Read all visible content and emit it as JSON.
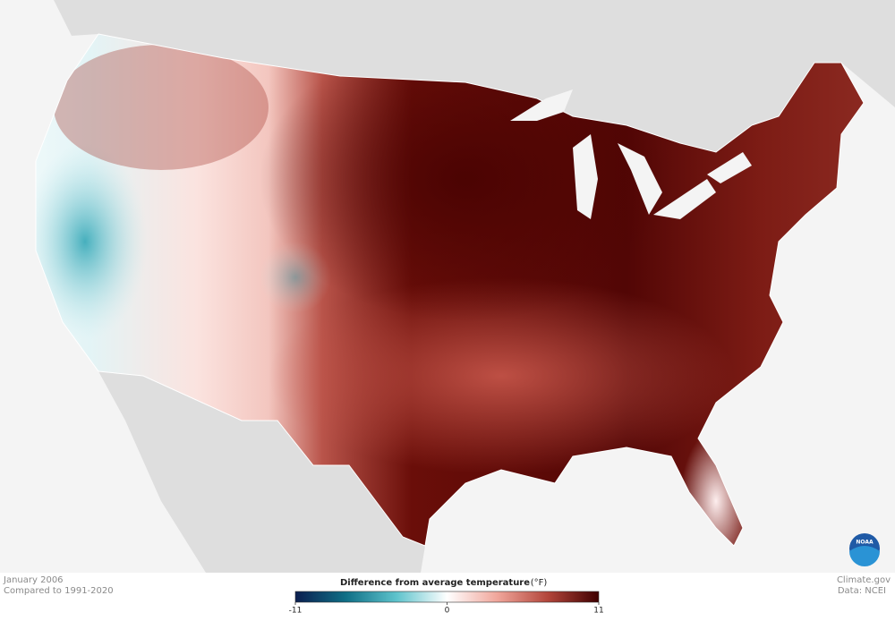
{
  "map": {
    "date": "January 2006",
    "baseline": "Compared to 1991-2020"
  },
  "legend": {
    "title": "Difference from average temperature",
    "unit": "(°F)",
    "range": [
      -11,
      11
    ],
    "ticks": [
      -11,
      0,
      11
    ],
    "colors": [
      "#0b1e4f",
      "#0f6f86",
      "#5ec3cc",
      "#ffffff",
      "#f0a59a",
      "#b2453a",
      "#3f0000"
    ]
  },
  "credits": {
    "source": "Climate.gov",
    "data": "Data: NCEI",
    "logo": "NOAA"
  }
}
